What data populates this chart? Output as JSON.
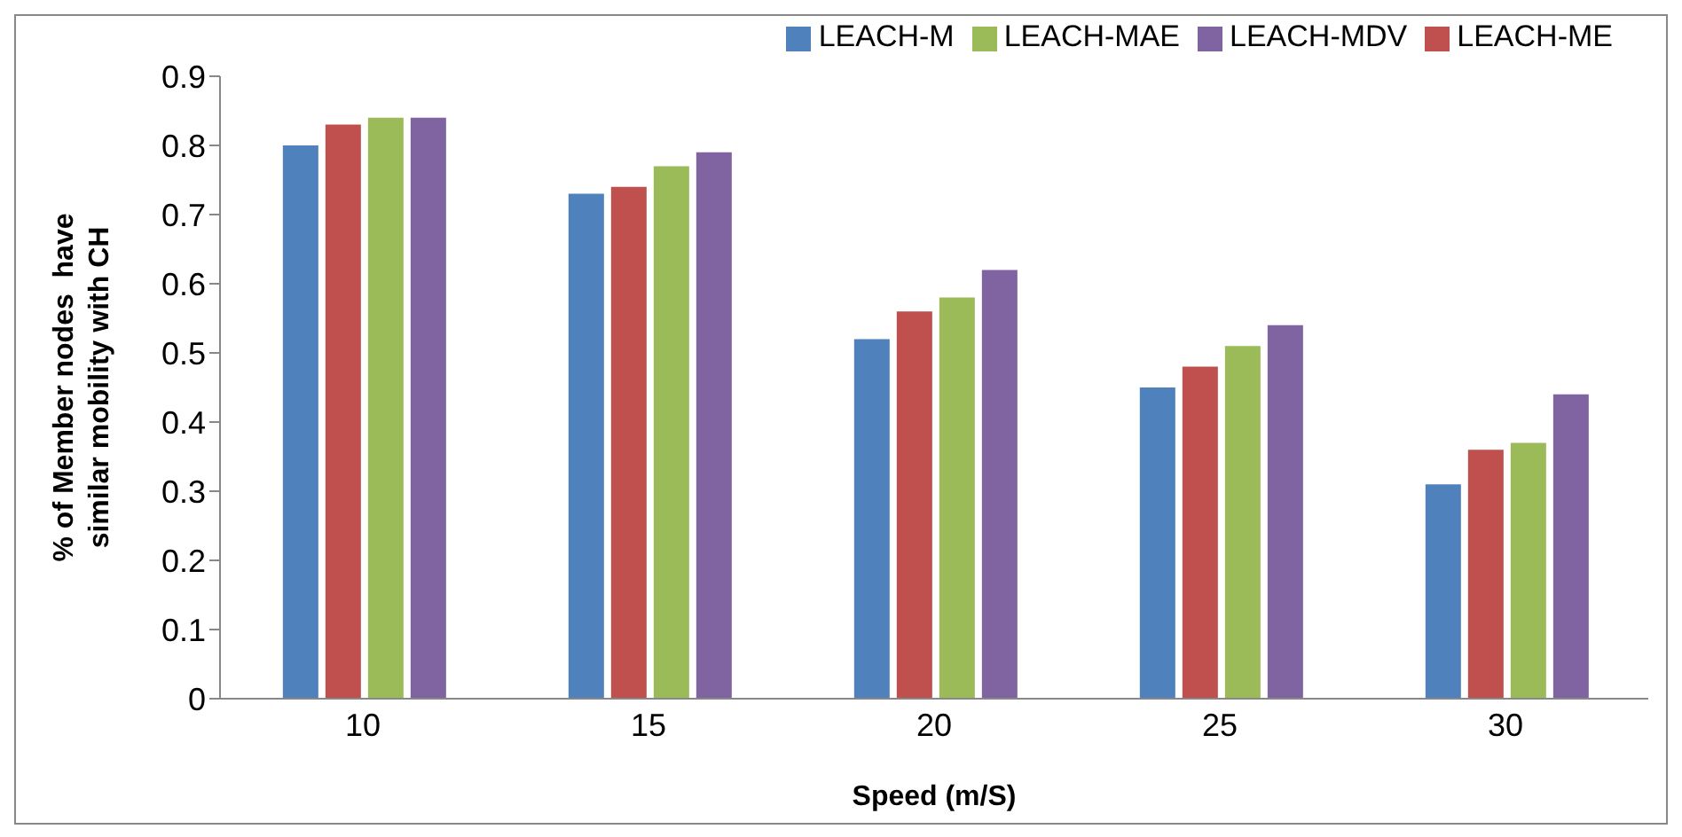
{
  "chart_data": {
    "type": "bar",
    "xlabel": "Speed (m/S)",
    "ylabel": "% of Member nodes  have similar mobility with CH",
    "categories": [
      "10",
      "15",
      "20",
      "25",
      "30"
    ],
    "series": [
      {
        "name": "LEACH-M",
        "color": "#4f81bd",
        "values": [
          0.8,
          0.73,
          0.52,
          0.45,
          0.31
        ]
      },
      {
        "name": "LEACH-ME",
        "color": "#c0504d",
        "values": [
          0.83,
          0.74,
          0.56,
          0.48,
          0.36
        ]
      },
      {
        "name": "LEACH-MAE",
        "color": "#9bbb59",
        "values": [
          0.84,
          0.77,
          0.58,
          0.51,
          0.37
        ]
      },
      {
        "name": "LEACH-MDV",
        "color": "#8064a2",
        "values": [
          0.84,
          0.79,
          0.62,
          0.54,
          0.44
        ]
      }
    ],
    "ylim": [
      0,
      0.9
    ],
    "yticks": [
      0,
      0.1,
      0.2,
      0.3,
      0.4,
      0.5,
      0.6,
      0.7,
      0.8,
      0.9
    ],
    "grid": false,
    "legend": "top right"
  }
}
